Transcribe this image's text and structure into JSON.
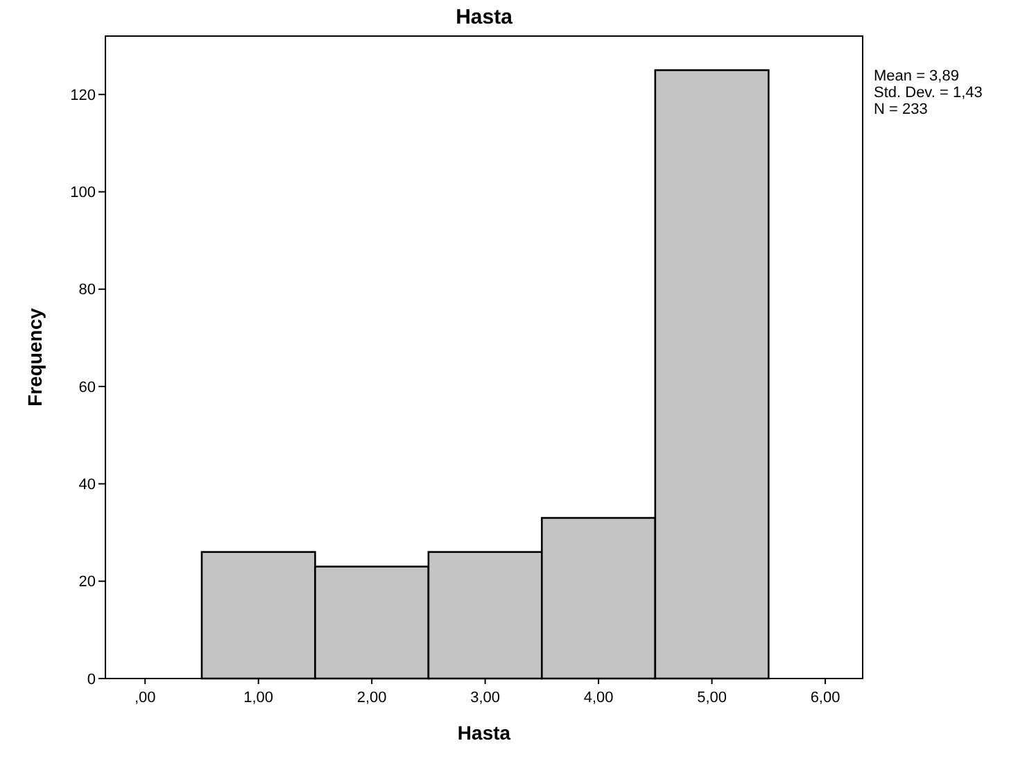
{
  "chart_data": {
    "type": "histogram",
    "title": "Hasta",
    "xlabel": "Hasta",
    "ylabel": "Frequency",
    "bins": [
      0.5,
      1.5,
      2.5,
      3.5,
      4.5,
      5.5
    ],
    "values": [
      26,
      23,
      26,
      33,
      125
    ],
    "color": "#c4c4c4",
    "xlim": [
      -0.35,
      6.33
    ],
    "ylim": [
      0,
      132
    ],
    "xticks": [
      {
        "value": 0,
        "label": ",00"
      },
      {
        "value": 1,
        "label": "1,00"
      },
      {
        "value": 2,
        "label": "2,00"
      },
      {
        "value": 3,
        "label": "3,00"
      },
      {
        "value": 4,
        "label": "4,00"
      },
      {
        "value": 5,
        "label": "5,00"
      },
      {
        "value": 6,
        "label": "6,00"
      }
    ],
    "yticks": [
      0,
      20,
      40,
      60,
      80,
      100,
      120
    ],
    "grid": false,
    "annotations": [
      "Mean = 3,89",
      "Std. Dev. = 1,43",
      "N = 233"
    ]
  }
}
